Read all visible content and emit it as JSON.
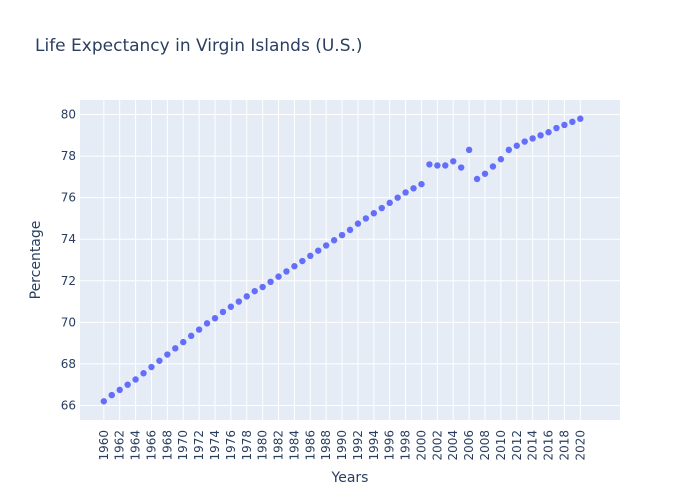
{
  "chart_data": {
    "type": "scatter",
    "title": "Life Expectancy in Virgin Islands (U.S.)",
    "xlabel": "Years",
    "ylabel": "Percentage",
    "xlim": [
      1957,
      2025
    ],
    "ylim": [
      65.3,
      80.7
    ],
    "xticks": [
      1960,
      1962,
      1964,
      1966,
      1968,
      1970,
      1972,
      1974,
      1976,
      1978,
      1980,
      1982,
      1984,
      1986,
      1988,
      1990,
      1992,
      1994,
      1996,
      1998,
      2000,
      2002,
      2004,
      2006,
      2008,
      2010,
      2012,
      2014,
      2016,
      2018,
      2020
    ],
    "yticks": [
      66,
      68,
      70,
      72,
      74,
      76,
      78,
      80
    ],
    "grid": true,
    "colors": {
      "marker": "#636efa",
      "plot_bg": "#e5ecf6",
      "grid": "#ffffff",
      "text": "#2a3f5f"
    },
    "series": [
      {
        "x": [
          1960,
          1961,
          1962,
          1963,
          1964,
          1965,
          1966,
          1967,
          1968,
          1969,
          1970,
          1971,
          1972,
          1973,
          1974,
          1975,
          1976,
          1977,
          1978,
          1979,
          1980,
          1981,
          1982,
          1983,
          1984,
          1985,
          1986,
          1987,
          1988,
          1989,
          1990,
          1991,
          1992,
          1993,
          1994,
          1995,
          1996,
          1997,
          1998,
          1999,
          2000,
          2001,
          2002,
          2003,
          2004,
          2005,
          2006,
          2007,
          2008,
          2009,
          2010,
          2011,
          2012,
          2013,
          2014,
          2015,
          2016,
          2017,
          2018,
          2019,
          2020
        ],
        "y": [
          66.2,
          66.5,
          66.75,
          67.0,
          67.25,
          67.55,
          67.85,
          68.15,
          68.45,
          68.75,
          69.05,
          69.35,
          69.65,
          69.95,
          70.2,
          70.5,
          70.75,
          71.0,
          71.25,
          71.5,
          71.7,
          71.95,
          72.2,
          72.45,
          72.7,
          72.95,
          73.2,
          73.45,
          73.7,
          73.95,
          74.2,
          74.45,
          74.75,
          75.0,
          75.25,
          75.5,
          75.75,
          76.0,
          76.25,
          76.45,
          76.65,
          77.6,
          77.55,
          77.55,
          77.75,
          77.45,
          78.3,
          76.9,
          77.15,
          77.5,
          77.85,
          78.3,
          78.5,
          78.7,
          78.85,
          79.0,
          79.15,
          79.35,
          79.5,
          79.65,
          79.8
        ]
      }
    ]
  }
}
